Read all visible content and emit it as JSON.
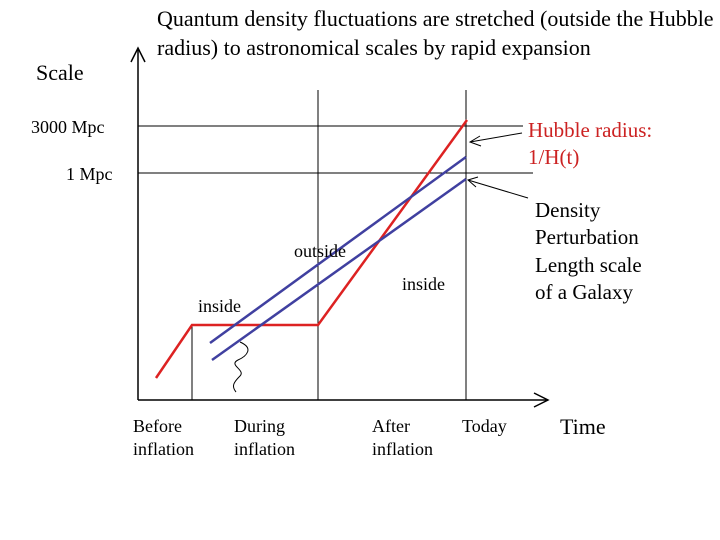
{
  "title": "Quantum density fluctuations are stretched (outside the Hubble radius) to astronomical scales by rapid expansion",
  "y_axis_label": "Scale",
  "x_axis_label": "Time",
  "y_ticks": [
    "3000 Mpc",
    "1 Mpc"
  ],
  "x_ticks": [
    "Before inflation",
    "During inflation",
    "After inflation",
    "Today"
  ],
  "x_tick_lines": {
    "before": "Before",
    "before2": "inflation",
    "during": "During",
    "during2": "inflation",
    "after": "After",
    "after2": "inflation",
    "today": "Today"
  },
  "hubble_label": {
    "line1": "Hubble radius:",
    "line2": "1/H(t)"
  },
  "density_label": [
    "Density",
    "Perturbation",
    "Length scale",
    "of a Galaxy"
  ],
  "region_labels": {
    "outside": "outside",
    "inside_left": "inside",
    "inside_right": "inside"
  },
  "colors": {
    "hubble": "#dd2222",
    "perturbation": "#4040a0",
    "axis": "#000000",
    "guide": "#000000"
  }
}
